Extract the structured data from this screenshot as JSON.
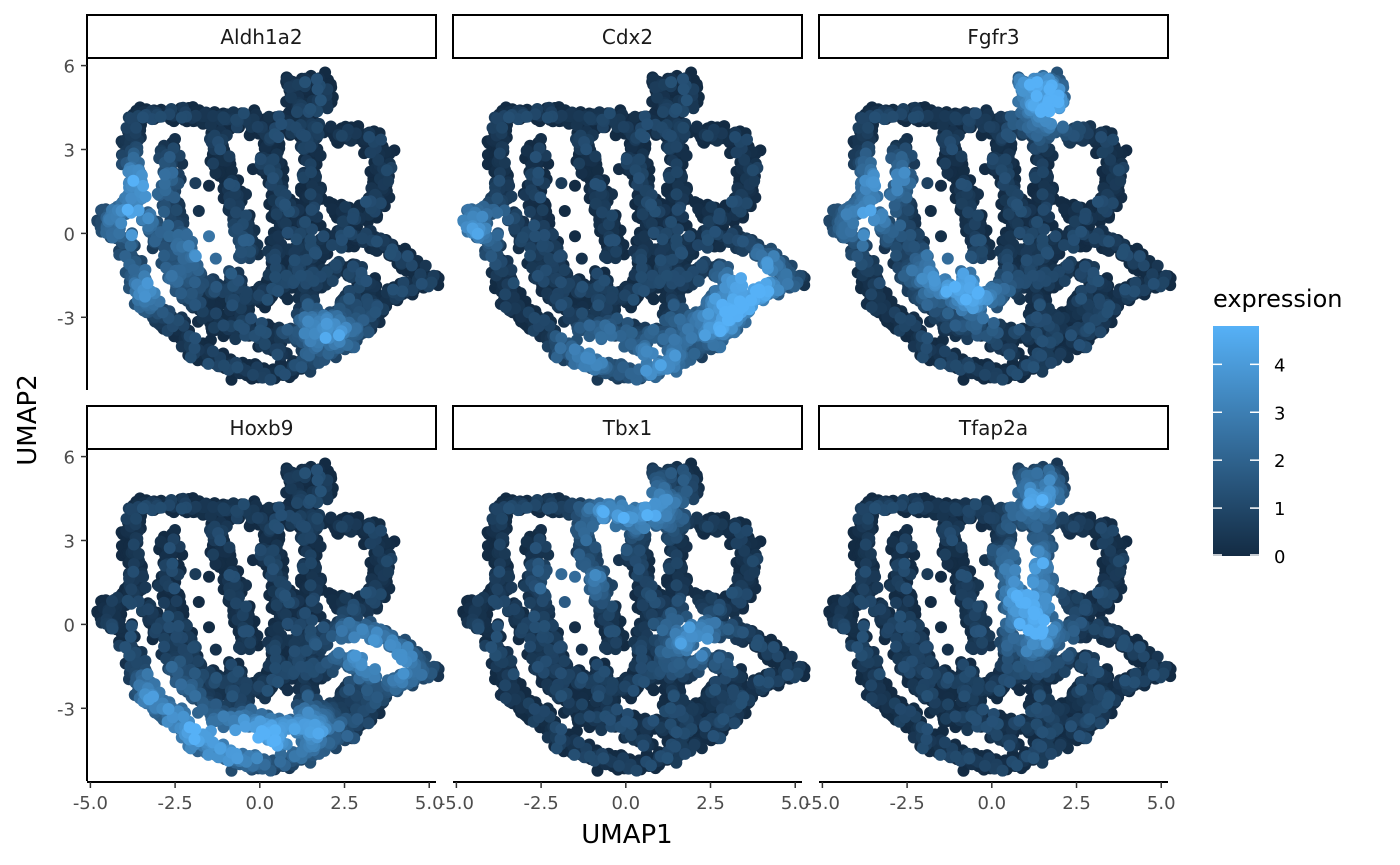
{
  "chart_data": {
    "type": "scatter",
    "facets": [
      "Aldh1a2",
      "Cdx2",
      "Fgfr3",
      "Hoxb9",
      "Tbx1",
      "Tfap2a"
    ],
    "xlabel": "UMAP1",
    "ylabel": "UMAP2",
    "xlim": [
      -5.1,
      5.2
    ],
    "ylim": [
      -5.6,
      6.2
    ],
    "x_ticks": [
      -5.0,
      -2.5,
      0.0,
      2.5,
      5.0
    ],
    "x_tick_labels": [
      "-5.0",
      "-2.5",
      "0.0",
      "2.5",
      "5.0"
    ],
    "y_ticks": [
      -3,
      0,
      3,
      6
    ],
    "y_tick_labels": [
      "-3",
      "0",
      "3",
      "6"
    ],
    "legend": {
      "title": "expression",
      "ticks": [
        0,
        1,
        2,
        3,
        4
      ],
      "tick_labels": [
        "0",
        "1",
        "2",
        "3",
        "4"
      ],
      "range": [
        0,
        4.8
      ],
      "low_color": "#132B43",
      "high_color": "#56B1F7",
      "placement": "right"
    },
    "points_description": "cells in a shared UMAP layout, colored by per-gene expression",
    "high_expression_regions": {
      "Aldh1a2": [
        [
          -3.8,
          0.5
        ],
        [
          -3.5,
          2.0
        ],
        [
          -3.2,
          -2.0
        ],
        [
          -1.5,
          -0.5
        ],
        [
          2.0,
          -3.5
        ]
      ],
      "Cdx2": [
        [
          4.0,
          -1.5
        ],
        [
          3.5,
          -2.3
        ],
        [
          2.6,
          -3.2
        ],
        [
          1.0,
          -4.5
        ],
        [
          -1.0,
          -4.2
        ],
        [
          -4.5,
          0.3
        ]
      ],
      "Fgfr3": [
        [
          1.2,
          5.3
        ],
        [
          1.8,
          4.4
        ],
        [
          -3.8,
          0.5
        ],
        [
          -3.2,
          2.0
        ],
        [
          -1.5,
          -1.5
        ],
        [
          -0.5,
          -2.3
        ]
      ],
      "Hoxb9": [
        [
          -2.0,
          -3.8
        ],
        [
          -0.8,
          -4.3
        ],
        [
          0.2,
          -4.0
        ],
        [
          -3.0,
          -2.5
        ],
        [
          1.5,
          -3.8
        ],
        [
          4.0,
          -1.5
        ],
        [
          3.0,
          -0.8
        ]
      ],
      "Tbx1": [
        [
          -0.5,
          3.8
        ],
        [
          0.8,
          4.3
        ],
        [
          -1.5,
          1.5
        ],
        [
          2.0,
          -0.5
        ]
      ],
      "Tfap2a": [
        [
          1.2,
          2.2
        ],
        [
          1.0,
          0.8
        ],
        [
          1.3,
          -0.3
        ],
        [
          1.3,
          4.6
        ]
      ]
    }
  }
}
